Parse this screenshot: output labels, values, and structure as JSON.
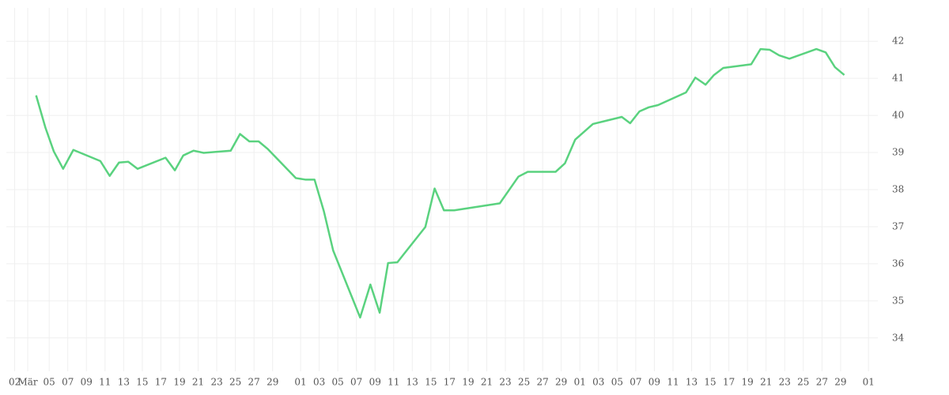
{
  "chart_data": {
    "type": "line",
    "x": [
      2.6,
      3.6,
      4.5,
      5.5,
      6.6,
      9.5,
      10.5,
      11.5,
      12.5,
      13.5,
      16.5,
      17.5,
      18.4,
      19.5,
      20.6,
      23.5,
      24.5,
      25.5,
      26.5,
      27.5,
      30.5,
      31.5,
      32.5,
      33.5,
      34.5,
      37.4,
      38.5,
      39.5,
      40.4,
      41.4,
      44.4,
      45.4,
      46.4,
      47.5,
      52.4,
      54.4,
      55.4,
      58.4,
      59.4,
      60.5,
      62.4,
      65.5,
      66.4,
      67.4,
      68.4,
      69.4,
      72.4,
      73.4,
      74.5,
      75.4,
      76.4,
      79.4,
      80.4,
      81.4,
      82.4,
      83.5,
      86.4,
      87.4,
      88.4,
      89.4
    ],
    "series": [
      {
        "color": "#5ad27f",
        "values": [
          40.54,
          39.67,
          39.03,
          38.56,
          39.07,
          38.77,
          38.37,
          38.73,
          38.75,
          38.56,
          38.86,
          38.52,
          38.92,
          39.05,
          38.99,
          39.05,
          39.5,
          39.3,
          39.3,
          39.09,
          38.31,
          38.27,
          38.27,
          37.42,
          36.36,
          34.55,
          35.44,
          34.68,
          36.02,
          36.04,
          36.99,
          38.03,
          37.44,
          37.44,
          37.63,
          38.35,
          38.48,
          38.48,
          38.71,
          39.35,
          39.77,
          39.96,
          39.79,
          40.11,
          40.22,
          40.28,
          40.62,
          41.02,
          40.83,
          41.09,
          41.28,
          41.38,
          41.79,
          41.77,
          41.62,
          41.53,
          41.79,
          41.7,
          41.3,
          41.09
        ]
      }
    ],
    "xlim": [
      -0.6,
      93
    ],
    "xticks": [
      {
        "value": 0.3,
        "label": "02"
      },
      {
        "value": 1.7,
        "label": "Mär"
      },
      {
        "value": 4,
        "label": "05"
      },
      {
        "value": 6,
        "label": "07"
      },
      {
        "value": 8,
        "label": "09"
      },
      {
        "value": 10,
        "label": "11"
      },
      {
        "value": 12,
        "label": "13"
      },
      {
        "value": 14,
        "label": "15"
      },
      {
        "value": 16,
        "label": "17"
      },
      {
        "value": 18,
        "label": "19"
      },
      {
        "value": 20,
        "label": "21"
      },
      {
        "value": 22,
        "label": "23"
      },
      {
        "value": 24,
        "label": "25"
      },
      {
        "value": 26,
        "label": "27"
      },
      {
        "value": 28,
        "label": "29"
      },
      {
        "value": 31,
        "label": "01"
      },
      {
        "value": 33,
        "label": "03"
      },
      {
        "value": 35,
        "label": "05"
      },
      {
        "value": 37,
        "label": "07"
      },
      {
        "value": 39,
        "label": "09"
      },
      {
        "value": 41,
        "label": "11"
      },
      {
        "value": 43,
        "label": "13"
      },
      {
        "value": 45,
        "label": "15"
      },
      {
        "value": 47,
        "label": "17"
      },
      {
        "value": 49,
        "label": "19"
      },
      {
        "value": 51,
        "label": "21"
      },
      {
        "value": 53,
        "label": "23"
      },
      {
        "value": 55,
        "label": "25"
      },
      {
        "value": 57,
        "label": "27"
      },
      {
        "value": 59,
        "label": "29"
      },
      {
        "value": 61,
        "label": "01"
      },
      {
        "value": 63,
        "label": "03"
      },
      {
        "value": 65,
        "label": "05"
      },
      {
        "value": 67,
        "label": "07"
      },
      {
        "value": 69,
        "label": "09"
      },
      {
        "value": 71,
        "label": "11"
      },
      {
        "value": 73,
        "label": "13"
      },
      {
        "value": 75,
        "label": "15"
      },
      {
        "value": 77,
        "label": "17"
      },
      {
        "value": 79,
        "label": "19"
      },
      {
        "value": 81,
        "label": "21"
      },
      {
        "value": 83,
        "label": "23"
      },
      {
        "value": 85,
        "label": "25"
      },
      {
        "value": 87,
        "label": "27"
      },
      {
        "value": 89,
        "label": "29"
      },
      {
        "value": 92,
        "label": "01"
      }
    ],
    "ylim": [
      33.1,
      42.9
    ],
    "yticks": [
      34,
      35,
      36,
      37,
      38,
      39,
      40,
      41,
      42
    ],
    "grid": true
  }
}
